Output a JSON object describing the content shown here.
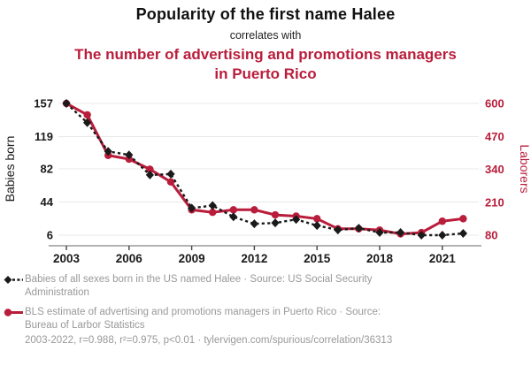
{
  "header": {
    "title": "Popularity of the first name Halee",
    "connector": "correlates with",
    "subtitle": "The number of advertising and promotions managers in Puerto Rico"
  },
  "colors": {
    "series_babies": "#1a1a1a",
    "series_laborers": "#b91d3b",
    "grid": "#e9e9e9",
    "axis_line": "#9a9a9a",
    "legend_text": "#999999"
  },
  "chart_data": {
    "type": "line",
    "x": [
      2003,
      2004,
      2005,
      2006,
      2007,
      2008,
      2009,
      2010,
      2011,
      2012,
      2013,
      2014,
      2015,
      2016,
      2017,
      2018,
      2019,
      2020,
      2021,
      2022
    ],
    "x_ticks": [
      2003,
      2006,
      2009,
      2012,
      2015,
      2018,
      2021
    ],
    "left_axis": {
      "label": "Babies born",
      "ticks": [
        157,
        119,
        82,
        44,
        6
      ],
      "range": [
        6,
        157
      ],
      "color": "#1a1a1a"
    },
    "right_axis": {
      "label": "Laborers",
      "ticks": [
        600,
        470,
        340,
        210,
        80
      ],
      "range": [
        80,
        600
      ],
      "color": "#b91d3b"
    },
    "series": [
      {
        "name": "Babies of all sexes born in the US named Halee",
        "axis": "left",
        "color": "#1a1a1a",
        "style": "dashed",
        "marker": "diamond",
        "values": [
          157,
          135,
          102,
          98,
          75,
          76,
          37,
          40,
          27,
          19,
          20,
          24,
          17,
          12,
          14,
          9,
          9,
          6,
          6,
          8
        ]
      },
      {
        "name": "BLS estimate of advertising and promotions managers in Puerto Rico",
        "axis": "right",
        "color": "#b91d3b",
        "style": "solid",
        "marker": "circle",
        "values": [
          600,
          555,
          395,
          380,
          340,
          290,
          180,
          170,
          180,
          180,
          160,
          155,
          145,
          105,
          105,
          100,
          85,
          90,
          135,
          145
        ]
      }
    ],
    "grid": true,
    "legend_position": "bottom"
  },
  "legend": [
    {
      "line1": "Babies of all sexes born in the US named Halee · Source: US Social Security",
      "line2": "Administration"
    },
    {
      "line1": "BLS estimate of advertising and promotions managers in Puerto Rico · Source:",
      "line2": "Bureau of Larbor Statistics"
    }
  ],
  "footer": "2003-2022, r=0.988, r²=0.975, p<0.01 · tylervigen.com/spurious/correlation/36313"
}
